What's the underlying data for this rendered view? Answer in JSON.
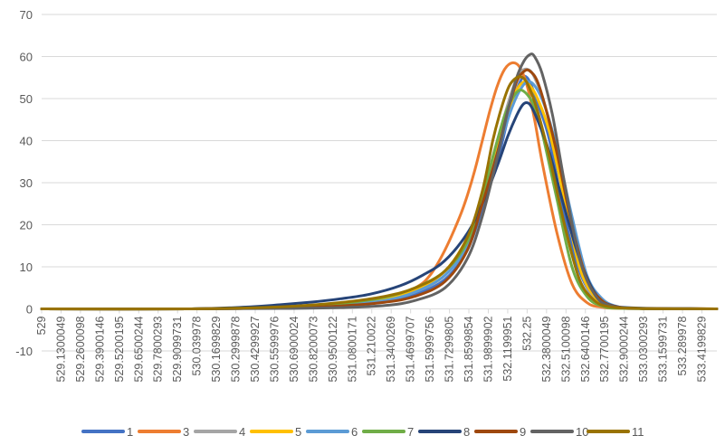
{
  "chart_data": {
    "type": "line",
    "title": "",
    "xlabel": "",
    "ylabel": "",
    "ylim": [
      -10,
      70
    ],
    "yticks": [
      -10,
      0,
      10,
      20,
      30,
      40,
      50,
      60,
      70
    ],
    "xlim": [
      529,
      533.52
    ],
    "grid": true,
    "legend_position": "bottom",
    "x_tick_labels": [
      {
        "x": 529,
        "label": "529"
      },
      {
        "x": 529.13,
        "label": "529.1300049"
      },
      {
        "x": 529.26,
        "label": "529.2600098"
      },
      {
        "x": 529.39,
        "label": "529.3900146"
      },
      {
        "x": 529.52,
        "label": "529.5200195"
      },
      {
        "x": 529.65,
        "label": "529.6500244"
      },
      {
        "x": 529.78,
        "label": "529.7800293"
      },
      {
        "x": 529.91,
        "label": "529.9099731"
      },
      {
        "x": 530.04,
        "label": "530.039978"
      },
      {
        "x": 530.17,
        "label": "530.1699829"
      },
      {
        "x": 530.3,
        "label": "530.2999878"
      },
      {
        "x": 530.43,
        "label": "530.4299927"
      },
      {
        "x": 530.56,
        "label": "530.5599976"
      },
      {
        "x": 530.69,
        "label": "530.6900024"
      },
      {
        "x": 530.82,
        "label": "530.8200073"
      },
      {
        "x": 530.95,
        "label": "530.9500122"
      },
      {
        "x": 531.08,
        "label": "531.0800171"
      },
      {
        "x": 531.21,
        "label": "531.210022"
      },
      {
        "x": 531.34,
        "label": "531.3400269"
      },
      {
        "x": 531.47,
        "label": "531.4699707"
      },
      {
        "x": 531.6,
        "label": "531.5999756"
      },
      {
        "x": 531.73,
        "label": "531.7299805"
      },
      {
        "x": 531.86,
        "label": "531.8599854"
      },
      {
        "x": 531.99,
        "label": "531.9899902"
      },
      {
        "x": 532.12,
        "label": "532.1199951"
      },
      {
        "x": 532.25,
        "label": "532.25"
      },
      {
        "x": 532.38,
        "label": "532.3800049"
      },
      {
        "x": 532.51,
        "label": "532.5100098"
      },
      {
        "x": 532.64,
        "label": "532.6400146"
      },
      {
        "x": 532.77,
        "label": "532.7700195"
      },
      {
        "x": 532.9,
        "label": "532.9000244"
      },
      {
        "x": 533.03,
        "label": "533.0300293"
      },
      {
        "x": 533.16,
        "label": "533.1599731"
      },
      {
        "x": 533.29,
        "label": "533.289978"
      },
      {
        "x": 533.42,
        "label": "533.4199829"
      }
    ],
    "series": [
      {
        "name": "1",
        "color": "#4472C4",
        "x": [
          529.0,
          530.0,
          530.6,
          531.0,
          531.3,
          531.5,
          531.7,
          531.85,
          531.95,
          532.05,
          532.12,
          532.18,
          532.22,
          532.25,
          532.28,
          532.33,
          532.4,
          532.5,
          532.6,
          532.7,
          532.8,
          533.0,
          533.52
        ],
        "y": [
          0,
          0,
          0.3,
          0.8,
          1.8,
          3.5,
          7,
          14,
          24,
          35,
          45,
          52,
          55,
          55,
          53,
          48,
          40,
          22,
          9,
          2.5,
          0.6,
          0.1,
          0
        ]
      },
      {
        "name": "3",
        "color": "#ED7D31",
        "x": [
          529.0,
          530.0,
          530.6,
          531.0,
          531.3,
          531.5,
          531.6,
          531.7,
          531.8,
          531.85,
          531.9,
          531.95,
          532.0,
          532.05,
          532.1,
          532.15,
          532.2,
          532.25,
          532.3,
          532.35,
          532.45,
          532.55,
          532.65,
          532.75,
          532.9,
          533.52
        ],
        "y": [
          0,
          0,
          0.3,
          1,
          2.5,
          5,
          8,
          14,
          22,
          27,
          33,
          40,
          47,
          53,
          57,
          58.5,
          57.5,
          53,
          45,
          35,
          18,
          6,
          1.5,
          0.4,
          0.1,
          0
        ]
      },
      {
        "name": "4",
        "color": "#A5A5A5",
        "x": [
          529.0,
          530.0,
          530.6,
          531.0,
          531.3,
          531.5,
          531.7,
          531.85,
          531.95,
          532.05,
          532.15,
          532.2,
          532.25,
          532.3,
          532.38,
          532.5,
          532.6,
          532.7,
          532.8,
          533.0,
          533.52
        ],
        "y": [
          0,
          0,
          0.3,
          1,
          2.2,
          4,
          8,
          16,
          27,
          40,
          52,
          56,
          57,
          55,
          47,
          27,
          10,
          2.5,
          0.6,
          0.1,
          0
        ]
      },
      {
        "name": "5",
        "color": "#FFC000",
        "x": [
          529.0,
          530.0,
          530.6,
          531.0,
          531.3,
          531.5,
          531.7,
          531.85,
          531.95,
          532.05,
          532.12,
          532.18,
          532.23,
          532.27,
          532.32,
          532.4,
          532.5,
          532.6,
          532.7,
          532.8,
          533.0,
          533.52
        ],
        "y": [
          0,
          0,
          0.3,
          1,
          2.4,
          4.5,
          9,
          17,
          27,
          38,
          46,
          52,
          54,
          53,
          50,
          42,
          26,
          10,
          3,
          0.7,
          0.1,
          0
        ]
      },
      {
        "name": "6",
        "color": "#5B9BD5",
        "x": [
          529.0,
          530.0,
          530.6,
          531.0,
          531.3,
          531.5,
          531.7,
          531.85,
          531.95,
          532.05,
          532.15,
          532.22,
          532.27,
          532.32,
          532.38,
          532.45,
          532.55,
          532.65,
          532.75,
          532.85,
          533.0,
          533.52
        ],
        "y": [
          0,
          0,
          0.3,
          0.9,
          2,
          4,
          8,
          15,
          25,
          37,
          48,
          53,
          54,
          52,
          47,
          38,
          22,
          8,
          2.5,
          0.6,
          0.1,
          0
        ]
      },
      {
        "name": "7",
        "color": "#70AD47",
        "x": [
          529.0,
          530.0,
          530.6,
          531.0,
          531.3,
          531.5,
          531.7,
          531.85,
          531.95,
          532.05,
          532.1,
          532.15,
          532.2,
          532.25,
          532.3,
          532.35,
          532.45,
          532.55,
          532.65,
          532.75,
          532.9,
          533.52
        ],
        "y": [
          0,
          0,
          0.4,
          1.3,
          2.8,
          5,
          9,
          16,
          27,
          40,
          46,
          50,
          52,
          51,
          48,
          42,
          26,
          10,
          3,
          0.7,
          0.1,
          0
        ]
      },
      {
        "name": "8",
        "color": "#264478",
        "x": [
          529.0,
          530.0,
          530.4,
          530.6,
          530.8,
          531.0,
          531.2,
          531.4,
          531.55,
          531.7,
          531.85,
          531.95,
          532.05,
          532.12,
          532.18,
          532.22,
          532.25,
          532.28,
          532.33,
          532.4,
          532.5,
          532.6,
          532.7,
          532.8,
          533.0,
          533.52
        ],
        "y": [
          0,
          0,
          0.5,
          1,
          1.6,
          2.4,
          3.5,
          5.5,
          8,
          11.5,
          18,
          25,
          34,
          41,
          46,
          48.5,
          49,
          48,
          44,
          37,
          24,
          12,
          4,
          1,
          0.2,
          0
        ]
      },
      {
        "name": "9",
        "color": "#9E480E",
        "x": [
          529.0,
          530.0,
          530.6,
          531.0,
          531.3,
          531.5,
          531.7,
          531.85,
          531.95,
          532.05,
          532.12,
          532.18,
          532.23,
          532.27,
          532.32,
          532.38,
          532.45,
          532.55,
          532.65,
          532.75,
          532.85,
          533.0,
          533.52
        ],
        "y": [
          0,
          0,
          0.2,
          0.7,
          1.6,
          3,
          6.5,
          14,
          25,
          37,
          47,
          54,
          56.5,
          56.5,
          54,
          47,
          37,
          20,
          7,
          2,
          0.5,
          0.1,
          0
        ]
      },
      {
        "name": "10",
        "color": "#636363",
        "x": [
          529.0,
          530.0,
          530.6,
          531.0,
          531.3,
          531.5,
          531.7,
          531.85,
          531.95,
          532.05,
          532.12,
          532.18,
          532.23,
          532.27,
          532.3,
          532.35,
          532.42,
          532.5,
          532.6,
          532.7,
          532.8,
          533.0,
          533.52
        ],
        "y": [
          0,
          0,
          0.1,
          0.3,
          0.8,
          2,
          5,
          12,
          22,
          36,
          47,
          55,
          59,
          60.5,
          60,
          56,
          46,
          30,
          12,
          3.5,
          0.8,
          0.1,
          0
        ]
      },
      {
        "name": "11",
        "color": "#997300",
        "x": [
          529.0,
          530.0,
          530.6,
          531.0,
          531.3,
          531.5,
          531.7,
          531.85,
          531.95,
          532.02,
          532.08,
          532.13,
          532.18,
          532.22,
          532.26,
          532.32,
          532.4,
          532.5,
          532.6,
          532.7,
          532.8,
          533.0,
          533.52
        ],
        "y": [
          0,
          0,
          0.5,
          1.5,
          3,
          5,
          9,
          17,
          28,
          40,
          48,
          53,
          55,
          55,
          53,
          47,
          36,
          20,
          7,
          2,
          0.5,
          0.1,
          0
        ]
      }
    ]
  }
}
